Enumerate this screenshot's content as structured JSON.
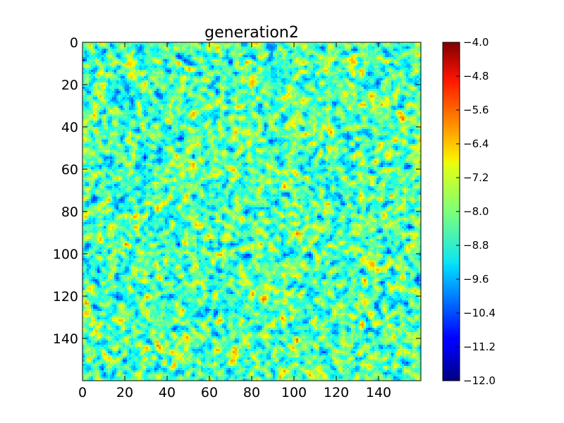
{
  "chart_data": {
    "type": "heatmap",
    "title": "generation2",
    "xlabel": "",
    "ylabel": "",
    "grid": false,
    "x_range": [
      0,
      160
    ],
    "y_range": [
      0,
      160
    ],
    "y_inverted": true,
    "x_ticks": [
      0,
      20,
      40,
      60,
      80,
      100,
      120,
      140
    ],
    "y_ticks": [
      0,
      20,
      40,
      60,
      80,
      100,
      120,
      140
    ],
    "grid_size": [
      160,
      160
    ],
    "value_summary": {
      "typical_min": -10.8,
      "typical_max": -6.0,
      "typical_center": -8.4,
      "note": "dense random-like field; mostly cyan/green (~-8.5) with scattered yellow/orange highs (~-6.5) and dark-blue lows (~-10.5)"
    },
    "colormap": "jet",
    "colorbar": {
      "min": -12.0,
      "max": -4.0,
      "tick_labels": [
        "-4.0",
        "-4.8",
        "-5.6",
        "-6.4",
        "-7.2",
        "-8.0",
        "-8.8",
        "-9.6",
        "-10.4",
        "-11.2",
        "-12.0"
      ],
      "tick_values": [
        -4.0,
        -4.8,
        -5.6,
        -6.4,
        -7.2,
        -8.0,
        -8.8,
        -9.6,
        -10.4,
        -11.2,
        -12.0
      ]
    }
  }
}
